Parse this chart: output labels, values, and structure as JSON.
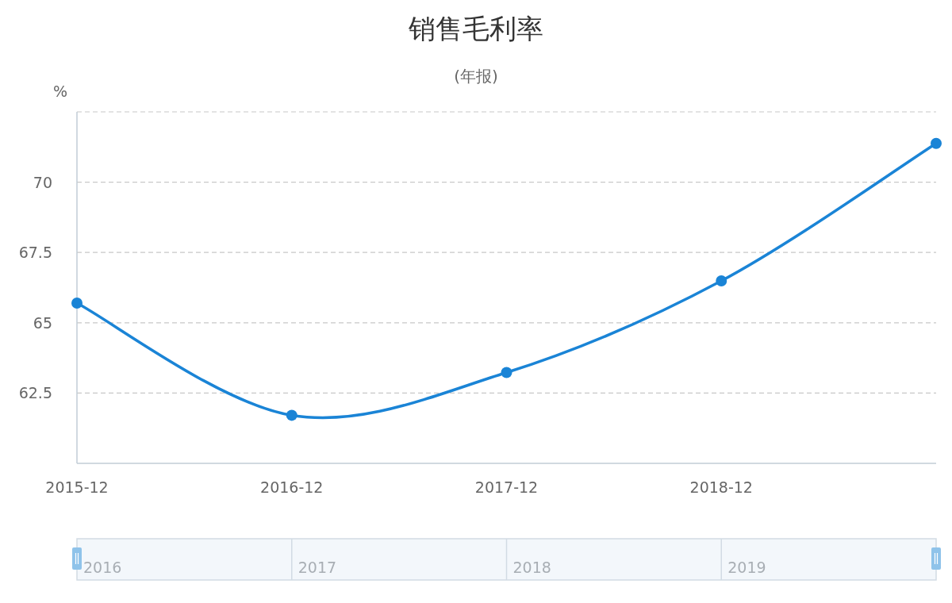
{
  "chart_data": {
    "type": "line",
    "title": "销售毛利率",
    "subtitle": "(年报)",
    "ylabel": "%",
    "categories": [
      "2015-12",
      "2016-12",
      "2017-12",
      "2018-12",
      null
    ],
    "series": [
      {
        "color": "#1a84d6",
        "values": [
          65.7,
          61.71,
          63.23,
          66.49,
          71.38
        ]
      }
    ],
    "ylim": [
      60,
      72.5
    ],
    "yticks": [
      {
        "value": 60,
        "label": null
      },
      62.5,
      65,
      67.5,
      70,
      {
        "value": 72.5,
        "label": null
      }
    ],
    "grid": "y",
    "marker": "circle",
    "annotations": [
      "2016",
      "2017",
      "2018",
      "2019"
    ]
  }
}
